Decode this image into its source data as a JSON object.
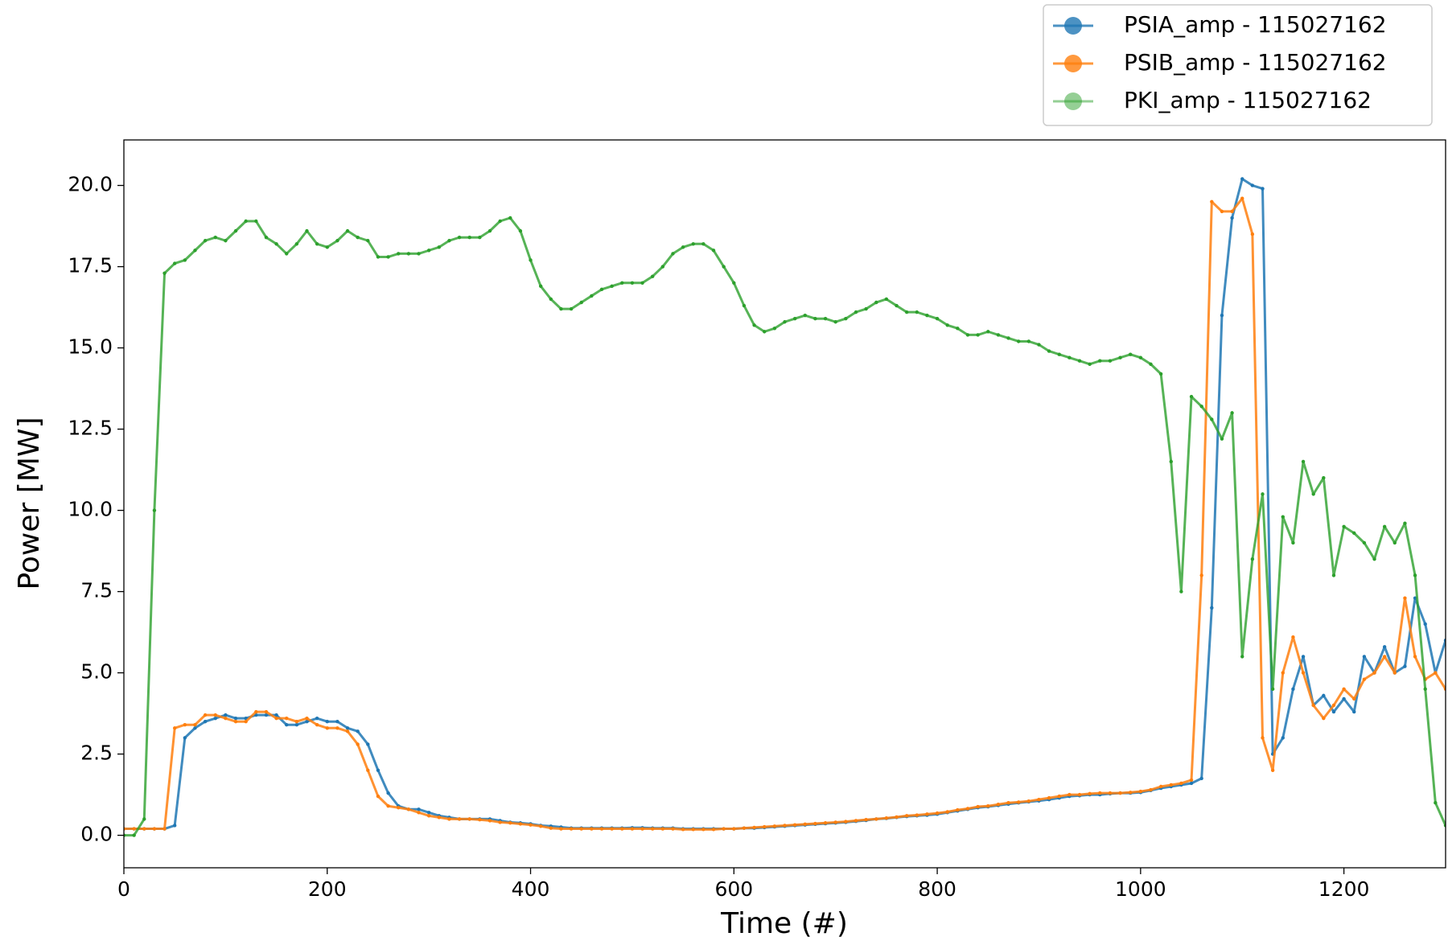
{
  "chart_data": {
    "type": "line",
    "xlabel": "Time (#)",
    "ylabel": "Power [MW]",
    "xlim": [
      0,
      1300
    ],
    "ylim": [
      -1,
      21.4
    ],
    "xticks": [
      0,
      200,
      400,
      600,
      800,
      1000,
      1200
    ],
    "yticks": [
      {
        "value": 0,
        "label": "0.0"
      },
      2.5,
      {
        "value": 5,
        "label": "5.0"
      },
      7.5,
      {
        "value": 10,
        "label": "10.0"
      },
      12.5,
      {
        "value": 15,
        "label": "15.0"
      },
      17.5,
      {
        "value": 20,
        "label": "20.0"
      }
    ],
    "legend": "upper right",
    "x": [
      0,
      10,
      20,
      30,
      40,
      50,
      60,
      70,
      80,
      90,
      100,
      110,
      120,
      130,
      140,
      150,
      160,
      170,
      180,
      190,
      200,
      210,
      220,
      230,
      240,
      250,
      260,
      270,
      280,
      290,
      300,
      310,
      320,
      330,
      340,
      350,
      360,
      370,
      380,
      390,
      400,
      410,
      420,
      430,
      440,
      450,
      460,
      470,
      480,
      490,
      500,
      510,
      520,
      530,
      540,
      550,
      560,
      570,
      580,
      590,
      600,
      610,
      620,
      630,
      640,
      650,
      660,
      670,
      680,
      690,
      700,
      710,
      720,
      730,
      740,
      750,
      760,
      770,
      780,
      790,
      800,
      810,
      820,
      830,
      840,
      850,
      860,
      870,
      880,
      890,
      900,
      910,
      920,
      930,
      940,
      950,
      960,
      970,
      980,
      990,
      1000,
      1010,
      1020,
      1030,
      1040,
      1050,
      1060,
      1070,
      1080,
      1090,
      1100,
      1110,
      1120,
      1130,
      1140,
      1150,
      1160,
      1170,
      1180,
      1190,
      1200,
      1210,
      1220,
      1230,
      1240,
      1250,
      1260,
      1270,
      1280,
      1290,
      1300
    ],
    "series": [
      {
        "name": "PSIA_amp - 115027162",
        "color": "#1f77b4",
        "values": [
          0.2,
          0.2,
          0.2,
          0.2,
          0.2,
          0.3,
          3.0,
          3.3,
          3.5,
          3.6,
          3.7,
          3.6,
          3.6,
          3.7,
          3.7,
          3.7,
          3.4,
          3.4,
          3.5,
          3.6,
          3.5,
          3.5,
          3.3,
          3.2,
          2.8,
          2.0,
          1.3,
          0.9,
          0.8,
          0.8,
          0.7,
          0.6,
          0.55,
          0.5,
          0.5,
          0.5,
          0.5,
          0.45,
          0.4,
          0.38,
          0.35,
          0.3,
          0.28,
          0.25,
          0.22,
          0.22,
          0.22,
          0.22,
          0.22,
          0.22,
          0.23,
          0.23,
          0.22,
          0.22,
          0.22,
          0.2,
          0.2,
          0.2,
          0.2,
          0.2,
          0.2,
          0.22,
          0.22,
          0.24,
          0.26,
          0.28,
          0.3,
          0.32,
          0.34,
          0.36,
          0.38,
          0.4,
          0.43,
          0.46,
          0.5,
          0.52,
          0.55,
          0.58,
          0.6,
          0.62,
          0.65,
          0.7,
          0.75,
          0.8,
          0.85,
          0.88,
          0.92,
          0.96,
          1.0,
          1.03,
          1.06,
          1.1,
          1.15,
          1.2,
          1.22,
          1.25,
          1.25,
          1.28,
          1.3,
          1.3,
          1.32,
          1.38,
          1.45,
          1.5,
          1.55,
          1.6,
          1.75,
          7.0,
          16.0,
          19.0,
          20.2,
          20.0,
          19.9,
          2.5,
          3.0,
          4.5,
          5.5,
          4.0,
          4.3,
          3.8,
          4.2,
          3.8,
          5.5,
          5.0,
          5.8,
          5.0,
          5.2,
          7.3,
          6.5,
          5.0,
          6.0
        ]
      },
      {
        "name": "PSIB_amp - 115027162",
        "color": "#ff7f0e",
        "values": [
          0.2,
          0.2,
          0.2,
          0.2,
          0.2,
          3.3,
          3.4,
          3.4,
          3.7,
          3.7,
          3.6,
          3.5,
          3.5,
          3.8,
          3.8,
          3.6,
          3.6,
          3.5,
          3.6,
          3.4,
          3.3,
          3.3,
          3.2,
          2.8,
          2.0,
          1.2,
          0.9,
          0.85,
          0.8,
          0.7,
          0.6,
          0.55,
          0.5,
          0.5,
          0.5,
          0.48,
          0.45,
          0.4,
          0.38,
          0.35,
          0.32,
          0.28,
          0.22,
          0.2,
          0.2,
          0.2,
          0.2,
          0.2,
          0.2,
          0.2,
          0.2,
          0.2,
          0.2,
          0.2,
          0.2,
          0.18,
          0.18,
          0.18,
          0.18,
          0.2,
          0.2,
          0.22,
          0.24,
          0.26,
          0.28,
          0.3,
          0.32,
          0.34,
          0.36,
          0.38,
          0.4,
          0.42,
          0.45,
          0.48,
          0.5,
          0.53,
          0.56,
          0.6,
          0.62,
          0.65,
          0.68,
          0.72,
          0.78,
          0.82,
          0.88,
          0.9,
          0.95,
          1.0,
          1.02,
          1.05,
          1.1,
          1.15,
          1.2,
          1.25,
          1.25,
          1.28,
          1.3,
          1.3,
          1.3,
          1.32,
          1.35,
          1.4,
          1.5,
          1.55,
          1.6,
          1.7,
          8.0,
          19.5,
          19.2,
          19.2,
          19.6,
          18.5,
          3.0,
          2.0,
          5.0,
          6.1,
          5.0,
          4.0,
          3.6,
          4.0,
          4.5,
          4.2,
          4.8,
          5.0,
          5.5,
          5.0,
          7.3,
          5.5,
          4.8,
          5.0,
          4.5
        ]
      },
      {
        "name": "PKI_amp - 115027162",
        "color": "#2ca02c",
        "values": [
          0,
          0,
          0.5,
          10,
          17.3,
          17.6,
          17.7,
          18.0,
          18.3,
          18.4,
          18.3,
          18.6,
          18.9,
          18.9,
          18.4,
          18.2,
          17.9,
          18.2,
          18.6,
          18.2,
          18.1,
          18.3,
          18.6,
          18.4,
          18.3,
          17.8,
          17.8,
          17.9,
          17.9,
          17.9,
          18.0,
          18.1,
          18.3,
          18.4,
          18.4,
          18.4,
          18.6,
          18.9,
          19.0,
          18.6,
          17.7,
          16.9,
          16.5,
          16.2,
          16.2,
          16.4,
          16.6,
          16.8,
          16.9,
          17.0,
          17.0,
          17.0,
          17.2,
          17.5,
          17.9,
          18.1,
          18.2,
          18.2,
          18.0,
          17.5,
          17.0,
          16.3,
          15.7,
          15.5,
          15.6,
          15.8,
          15.9,
          16.0,
          15.9,
          15.9,
          15.8,
          15.9,
          16.1,
          16.2,
          16.4,
          16.5,
          16.3,
          16.1,
          16.1,
          16.0,
          15.9,
          15.7,
          15.6,
          15.4,
          15.4,
          15.5,
          15.4,
          15.3,
          15.2,
          15.2,
          15.1,
          14.9,
          14.8,
          14.7,
          14.6,
          14.5,
          14.6,
          14.6,
          14.7,
          14.8,
          14.7,
          14.5,
          14.2,
          11.5,
          7.5,
          13.5,
          13.2,
          12.8,
          12.2,
          13.0,
          5.5,
          8.5,
          10.5,
          4.5,
          9.8,
          9.0,
          11.5,
          10.5,
          11.0,
          8.0,
          9.5,
          9.3,
          9.0,
          8.5,
          9.5,
          9.0,
          9.6,
          8.0,
          4.5,
          1.0,
          0.3
        ]
      }
    ]
  }
}
